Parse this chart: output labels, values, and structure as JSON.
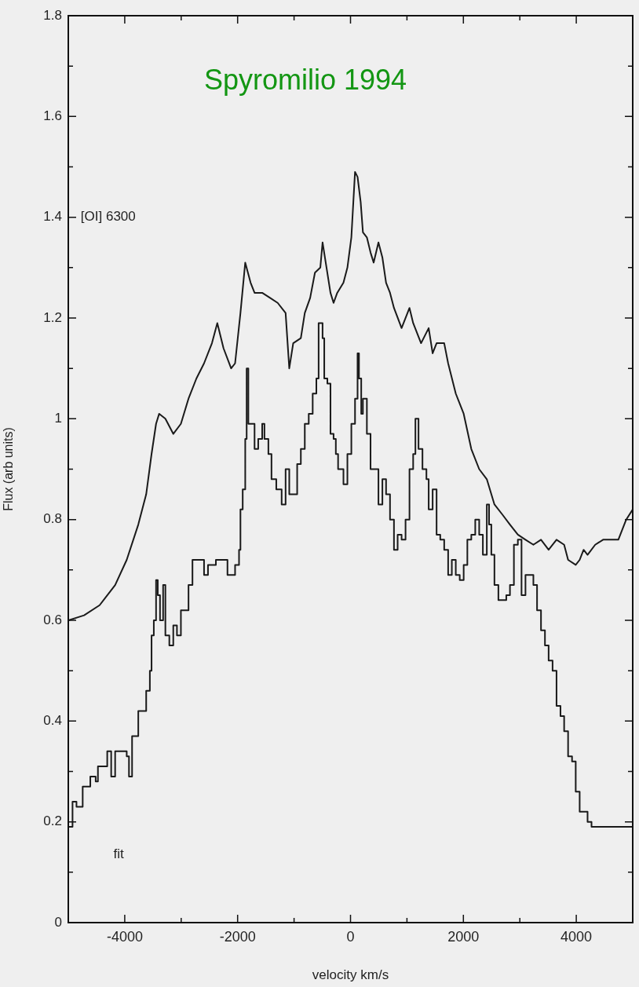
{
  "chart_data": {
    "type": "line",
    "title": "Spyromilio 1994",
    "xlabel": "velocity km/s",
    "ylabel": "Flux (arb units)",
    "annotations": [
      "[OI] 6300",
      "fit"
    ],
    "xlim": [
      -5000,
      5000
    ],
    "ylim": [
      0,
      1.8
    ],
    "xticks": [
      {
        "value": -5000,
        "label": null
      },
      -4000,
      {
        "value": -3000,
        "label": null
      },
      -2000,
      {
        "value": -1000,
        "label": null
      },
      0,
      {
        "value": 1000,
        "label": null
      },
      2000,
      {
        "value": 3000,
        "label": null
      },
      4000,
      {
        "value": 5000,
        "label": null
      }
    ],
    "yticks": [
      0,
      {
        "value": 0.1,
        "label": null
      },
      0.2,
      {
        "value": 0.3,
        "label": null
      },
      0.4,
      {
        "value": 0.5,
        "label": null
      },
      0.6,
      {
        "value": 0.7,
        "label": null
      },
      0.8,
      {
        "value": 0.9,
        "label": null
      },
      1,
      {
        "value": 1.1,
        "label": null
      },
      1.2,
      {
        "value": 1.3,
        "label": null
      },
      1.4,
      {
        "value": 1.5,
        "label": null
      },
      1.6,
      {
        "value": 1.7,
        "label": null
      },
      1.8
    ],
    "grid": false,
    "legend": false,
    "marker": "none",
    "line_style": "solid",
    "series": [
      {
        "color": "#1a1a1a",
        "x": [
          -5000,
          -4720,
          -4445,
          -4170,
          -3965,
          -3760,
          -3620,
          -3525,
          -3445,
          -3390,
          -3280,
          -3140,
          -3005,
          -2870,
          -2730,
          -2595,
          -2455,
          -2360,
          -2250,
          -2115,
          -2045,
          -1950,
          -1865,
          -1770,
          -1700,
          -1565,
          -1425,
          -1290,
          -1150,
          -1085,
          -1015,
          -880,
          -810,
          -715,
          -630,
          -535,
          -495,
          -425,
          -355,
          -300,
          -235,
          -125,
          -55,
          15,
          80,
          125,
          180,
          220,
          290,
          355,
          410,
          495,
          565,
          630,
          700,
          770,
          905,
          1045,
          1110,
          1250,
          1385,
          1455,
          1525,
          1660,
          1730,
          1865,
          2005,
          2140,
          2280,
          2415,
          2550,
          2690,
          2825,
          2965,
          3100,
          3240,
          3375,
          3510,
          3650,
          3785,
          3855,
          3990,
          4060,
          4130,
          4200,
          4335,
          4475,
          4610,
          4745,
          4885,
          5000
        ],
        "values": [
          0.6,
          0.61,
          0.63,
          0.67,
          0.72,
          0.79,
          0.85,
          0.93,
          0.99,
          1.01,
          1.0,
          0.97,
          0.99,
          1.04,
          1.08,
          1.11,
          1.15,
          1.19,
          1.14,
          1.1,
          1.11,
          1.21,
          1.31,
          1.27,
          1.25,
          1.25,
          1.24,
          1.23,
          1.21,
          1.1,
          1.15,
          1.16,
          1.21,
          1.24,
          1.29,
          1.3,
          1.35,
          1.3,
          1.25,
          1.23,
          1.25,
          1.27,
          1.3,
          1.36,
          1.49,
          1.48,
          1.43,
          1.37,
          1.36,
          1.33,
          1.31,
          1.35,
          1.32,
          1.27,
          1.25,
          1.22,
          1.18,
          1.22,
          1.19,
          1.15,
          1.18,
          1.13,
          1.15,
          1.15,
          1.11,
          1.05,
          1.01,
          0.94,
          0.9,
          0.88,
          0.83,
          0.81,
          0.79,
          0.77,
          0.76,
          0.75,
          0.76,
          0.74,
          0.76,
          0.75,
          0.72,
          0.71,
          0.72,
          0.74,
          0.73,
          0.75,
          0.76,
          0.76,
          0.76,
          0.8,
          0.82
        ]
      },
      {
        "type": "step",
        "color": "#1a1a1a",
        "x": [
          -5000,
          -4925,
          -4855,
          -4745,
          -4610,
          -4515,
          -4475,
          -4375,
          -4310,
          -4240,
          -4170,
          -4035,
          -3965,
          -3925,
          -3870,
          -3760,
          -3620,
          -3555,
          -3525,
          -3485,
          -3445,
          -3415,
          -3375,
          -3320,
          -3280,
          -3210,
          -3140,
          -3075,
          -3005,
          -2870,
          -2800,
          -2660,
          -2595,
          -2525,
          -2385,
          -2250,
          -2180,
          -2115,
          -2045,
          -1975,
          -1950,
          -1910,
          -1865,
          -1840,
          -1810,
          -1770,
          -1700,
          -1635,
          -1565,
          -1525,
          -1455,
          -1400,
          -1315,
          -1220,
          -1150,
          -1085,
          -945,
          -880,
          -810,
          -740,
          -670,
          -605,
          -565,
          -495,
          -465,
          -410,
          -355,
          -300,
          -260,
          -220,
          -125,
          -55,
          15,
          80,
          125,
          150,
          190,
          220,
          290,
          355,
          425,
          495,
          565,
          630,
          700,
          770,
          835,
          905,
          975,
          1045,
          1110,
          1150,
          1205,
          1275,
          1345,
          1385,
          1455,
          1525,
          1590,
          1660,
          1730,
          1795,
          1865,
          1935,
          2005,
          2070,
          2140,
          2210,
          2280,
          2345,
          2415,
          2455,
          2495,
          2550,
          2620,
          2690,
          2760,
          2825,
          2895,
          2965,
          3030,
          3100,
          3170,
          3240,
          3305,
          3375,
          3445,
          3510,
          3580,
          3650,
          3720,
          3785,
          3855,
          3925,
          3990,
          4060,
          4130,
          4200,
          4270,
          5000
        ],
        "values": [
          0.19,
          0.24,
          0.23,
          0.27,
          0.29,
          0.28,
          0.31,
          0.31,
          0.34,
          0.29,
          0.34,
          0.34,
          0.33,
          0.29,
          0.37,
          0.42,
          0.46,
          0.5,
          0.57,
          0.6,
          0.68,
          0.65,
          0.6,
          0.67,
          0.57,
          0.55,
          0.59,
          0.57,
          0.62,
          0.67,
          0.72,
          0.72,
          0.69,
          0.71,
          0.72,
          0.72,
          0.69,
          0.69,
          0.71,
          0.74,
          0.82,
          0.86,
          0.96,
          1.1,
          0.99,
          0.99,
          0.94,
          0.96,
          0.99,
          0.96,
          0.93,
          0.88,
          0.86,
          0.83,
          0.9,
          0.85,
          0.91,
          0.94,
          0.99,
          1.01,
          1.05,
          1.08,
          1.19,
          1.16,
          1.08,
          1.07,
          0.97,
          0.96,
          0.93,
          0.9,
          0.87,
          0.93,
          0.99,
          1.04,
          1.13,
          1.08,
          1.01,
          1.04,
          0.97,
          0.9,
          0.9,
          0.83,
          0.88,
          0.85,
          0.8,
          0.74,
          0.77,
          0.76,
          0.8,
          0.9,
          0.93,
          1.0,
          0.94,
          0.9,
          0.88,
          0.82,
          0.86,
          0.77,
          0.76,
          0.74,
          0.69,
          0.72,
          0.69,
          0.68,
          0.71,
          0.76,
          0.77,
          0.8,
          0.77,
          0.73,
          0.83,
          0.79,
          0.73,
          0.67,
          0.64,
          0.64,
          0.65,
          0.67,
          0.75,
          0.76,
          0.65,
          0.69,
          0.69,
          0.67,
          0.62,
          0.58,
          0.55,
          0.52,
          0.5,
          0.43,
          0.41,
          0.38,
          0.33,
          0.32,
          0.26,
          0.22,
          0.22,
          0.2,
          0.19,
          0.19
        ]
      }
    ]
  }
}
